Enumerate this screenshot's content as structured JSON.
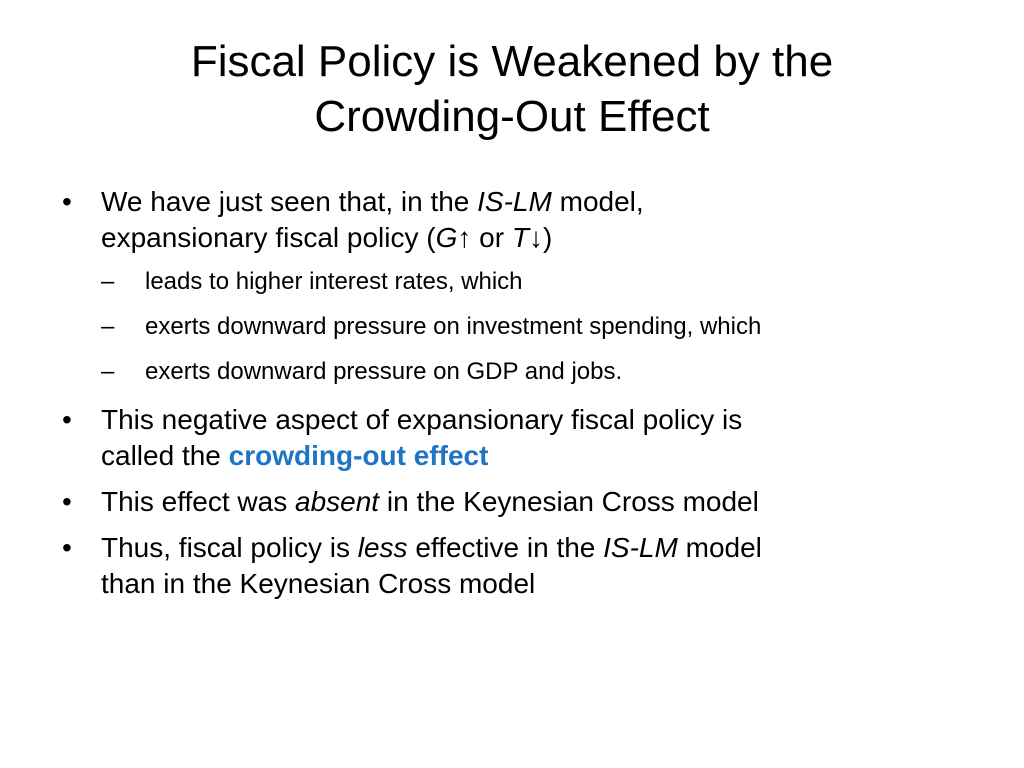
{
  "slide": {
    "title_lines": [
      "Fiscal Policy is Weakened by the",
      "Crowding-Out Effect"
    ],
    "bullet_glyph": "•",
    "dash_glyph": "–",
    "accent_color": "#1F75C4",
    "bullets": [
      {
        "line1": {
          "before": "We have just seen that, in the ",
          "em": "IS-LM",
          "after": " model,"
        },
        "line2": {
          "before": "expansionary fiscal policy (",
          "g": "G",
          "up_arrow": "↑",
          "or": " or ",
          "t": "T",
          "down_arrow": "↓",
          "close": ")"
        },
        "sub_items": [
          "leads to higher interest rates, which",
          "exerts downward pressure on investment spending, which",
          "exerts downward pressure on GDP and jobs."
        ]
      },
      {
        "line1": "This negative aspect of expansionary fiscal policy is",
        "line2_before": "called the ",
        "highlight": "crowding-out effect"
      },
      {
        "before": "This effect was ",
        "em": "absent",
        "after": " in the Keynesian Cross model"
      },
      {
        "line1_before": "Thus, fiscal policy is ",
        "em1": "less",
        "line1_middle": " effective in the ",
        "em2": "IS-LM",
        "line1_after": " model",
        "line2": "than in the Keynesian Cross model"
      }
    ]
  }
}
